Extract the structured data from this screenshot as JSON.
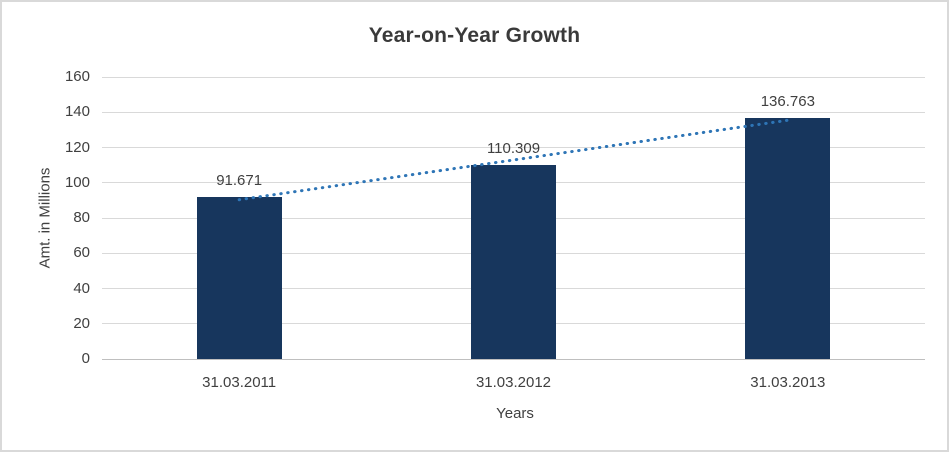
{
  "chart_data": {
    "type": "bar",
    "title": "Year-on-Year Growth",
    "categories": [
      "31.03.2011",
      "31.03.2012",
      "31.03.2013"
    ],
    "values": [
      91.671,
      110.309,
      136.763
    ],
    "data_labels": [
      "91.671",
      "110.309",
      "136.763"
    ],
    "xlabel": "Years",
    "ylabel": "Amt. in Millions",
    "ylim": [
      0,
      160
    ],
    "yticks": [
      0,
      20,
      40,
      60,
      80,
      100,
      120,
      140,
      160
    ],
    "grid": "horizontal",
    "legend": "none",
    "trendline": {
      "type": "linear",
      "style": "dotted"
    },
    "colors": {
      "bar": "#17365D",
      "trendline": "#2E75B6",
      "gridline": "#D9D9D9",
      "axis_line": "#BFBFBF",
      "text": "#404040",
      "title": "#3A3A3A",
      "border": "#D9D9D9",
      "background": "#FFFFFF"
    }
  }
}
